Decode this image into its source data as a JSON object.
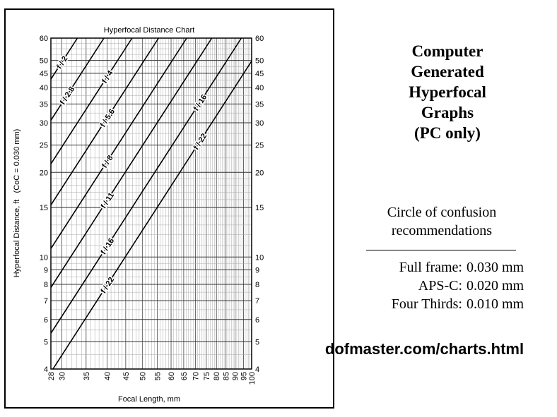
{
  "chart_data": {
    "type": "line",
    "title": "Hyperfocal Distance Chart",
    "xlabel": "Focal Length, mm",
    "ylabel": "Hyperfocal Distance, ft   (CoC = 0.030 mm)",
    "xlim": [
      28,
      100
    ],
    "ylim": [
      4,
      60
    ],
    "x_scale": "log",
    "y_scale": "log",
    "grid": true,
    "x_ticks": [
      28,
      30,
      35,
      40,
      45,
      50,
      55,
      60,
      65,
      70,
      75,
      80,
      85,
      90,
      95,
      100
    ],
    "y_ticks": [
      4,
      5,
      6,
      7,
      8,
      9,
      10,
      15,
      20,
      25,
      30,
      35,
      40,
      45,
      50,
      60
    ],
    "coc_mm": 0.03,
    "series": [
      {
        "name": "f / 2",
        "fnumber": 2,
        "label_at": 30
      },
      {
        "name": "f / 2.8",
        "fnumber": 2.8,
        "label_at": 31
      },
      {
        "name": "f / 4",
        "fnumber": 4,
        "label_at": 40
      },
      {
        "name": "f / 5.6",
        "fnumber": 5.6,
        "label_at": 40
      },
      {
        "name": "f / 8",
        "fnumber": 8,
        "label_at": 40
      },
      {
        "name": "f / 11",
        "fnumber": 11,
        "label_at": 40
      },
      {
        "name": "f / 16",
        "fnumber": 16,
        "label_at": 40
      },
      {
        "name": "f / 16",
        "fnumber": 16,
        "label_at": 72
      },
      {
        "name": "f / 22",
        "fnumber": 22,
        "label_at": 40
      },
      {
        "name": "f / 22",
        "fnumber": 22,
        "label_at": 72
      }
    ]
  },
  "headline": [
    "Computer",
    "Generated",
    "Hyperfocal",
    "Graphs",
    "(PC only)"
  ],
  "coc": {
    "title": [
      "Circle of confusion",
      "recommendations"
    ],
    "rows": [
      {
        "label": "Full frame:",
        "value": "0.030 mm"
      },
      {
        "label": "APS-C:",
        "value": "0.020 mm"
      },
      {
        "label": "Four Thirds:",
        "value": "0.010 mm"
      }
    ]
  },
  "site_url": "dofmaster.com/charts.html"
}
